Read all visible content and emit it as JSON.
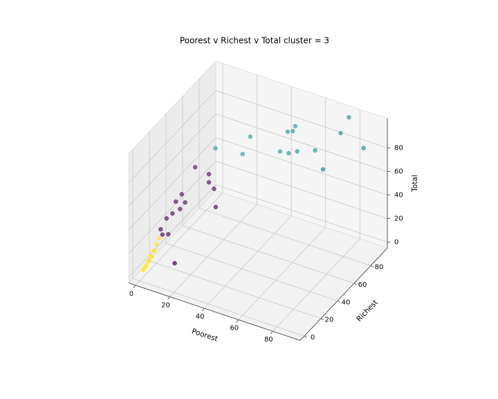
{
  "chart_data": {
    "type": "scatter3d",
    "title": "Poorest v Richest v Total cluster = 3",
    "xlabel": "Poorest",
    "ylabel": "Richest",
    "zlabel": "Total",
    "xlim": [
      -4,
      96
    ],
    "ylim": [
      -5,
      100
    ],
    "zlim": [
      -5,
      105
    ],
    "xticks": [
      0,
      20,
      40,
      60,
      80
    ],
    "yticks": [
      0,
      20,
      40,
      60,
      80
    ],
    "zticks": [
      0,
      20,
      40,
      60,
      80
    ],
    "grid": true,
    "series": [
      {
        "color": "#440154",
        "x": [
          5,
          6,
          7,
          6,
          7,
          9,
          10,
          9,
          12,
          13,
          21,
          21,
          24,
          25,
          18
        ],
        "y": [
          15,
          15,
          20,
          20,
          25,
          25,
          30,
          30,
          30,
          40,
          40,
          40,
          40,
          40,
          5
        ],
        "z": [
          30,
          26,
          23,
          36,
          37,
          48,
          51,
          38,
          45,
          68,
          66,
          59,
          55,
          40,
          15
        ]
      },
      {
        "color": "#21918c",
        "x": [
          20,
          31,
          33,
          48,
          50,
          53,
          53,
          52,
          58,
          66,
          73,
          76,
          76,
          87
        ],
        "y": [
          50,
          60,
          65,
          70,
          75,
          70,
          75,
          80,
          70,
          75,
          70,
          85,
          95,
          90
        ],
        "z": [
          80,
          73,
          85,
          76,
          90,
          77,
          92,
          92,
          81,
          82,
          73,
          94,
          100,
          83
        ]
      },
      {
        "color": "#fde725",
        "x": [
          2,
          1,
          3,
          2,
          4,
          3,
          5,
          4,
          6,
          5,
          7,
          8
        ],
        "y": [
          1,
          2,
          2,
          3,
          3,
          4,
          4,
          5,
          5,
          6,
          6,
          7
        ],
        "z": [
          5,
          3,
          8,
          6,
          12,
          10,
          15,
          14,
          20,
          18,
          25,
          30
        ]
      }
    ]
  }
}
